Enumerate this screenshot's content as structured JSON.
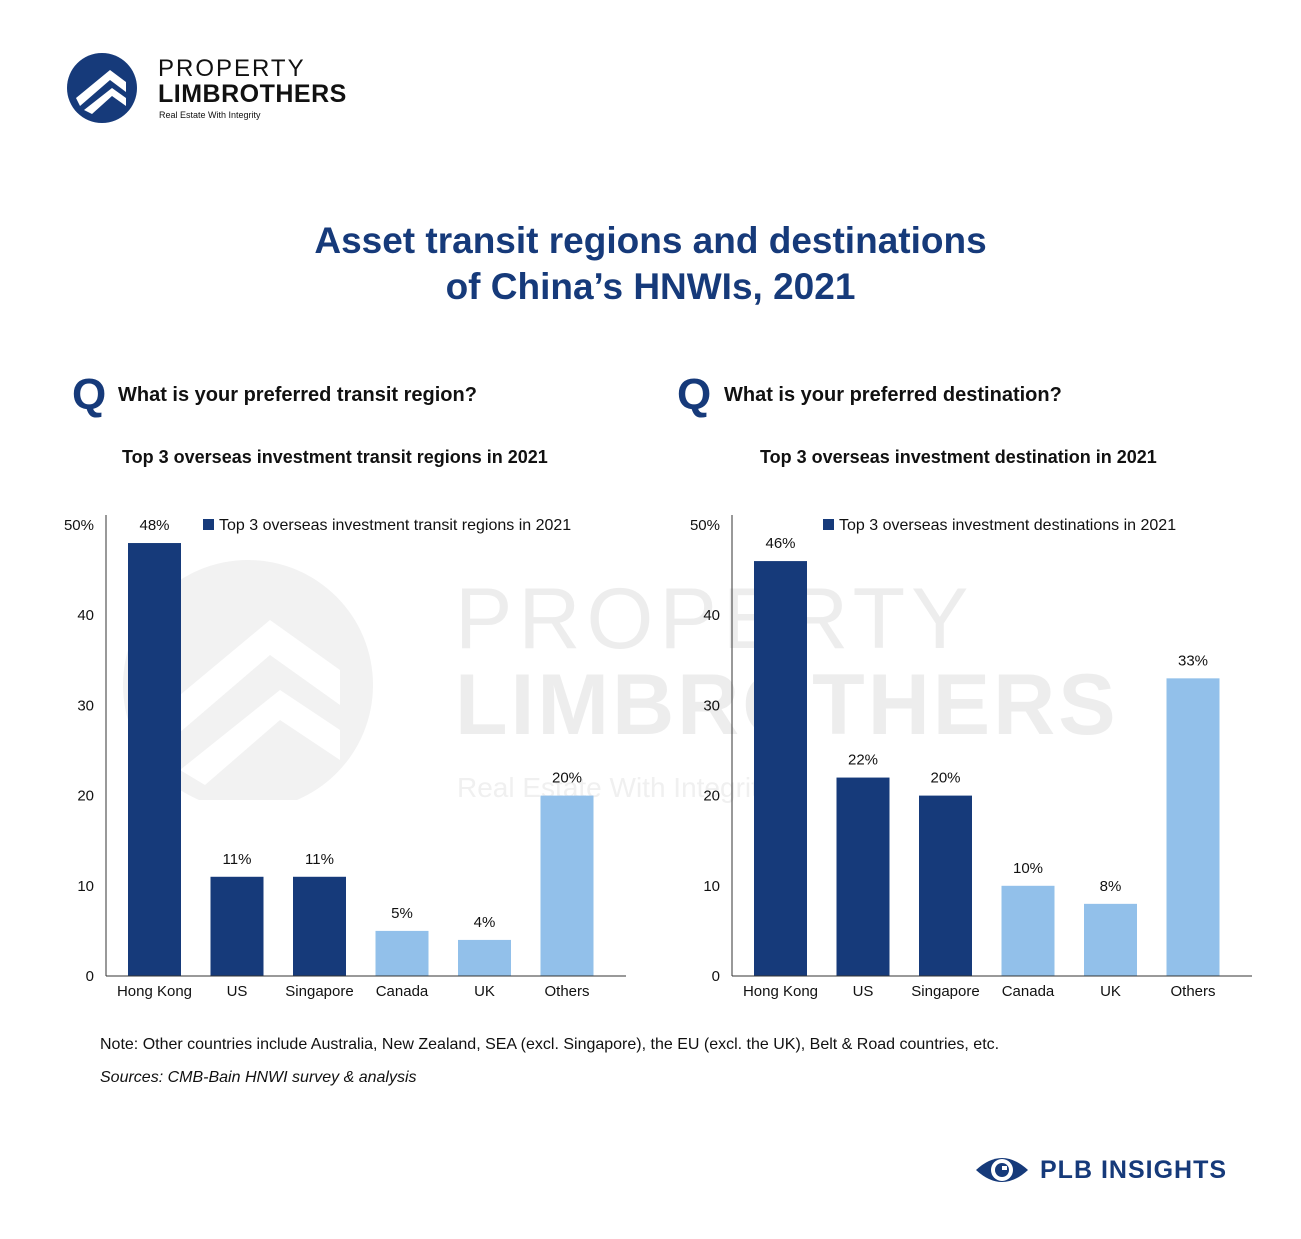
{
  "brand": {
    "line1": "PROPERTY",
    "line2": "LIMBROTHERS",
    "tagline": "Real Estate With Integrity"
  },
  "title": {
    "line1": "Asset transit regions and destinations",
    "line2": "of China’s HNWIs, 2021"
  },
  "left_panel": {
    "q_mark": "Q",
    "question": "What is your preferred transit region?",
    "subtitle": "Top 3 overseas investment transit regions in 2021"
  },
  "right_panel": {
    "q_mark": "Q",
    "question": "What is your preferred destination?",
    "subtitle": "Top 3 overseas investment destination in 2021"
  },
  "colors": {
    "dark": "#163a7a",
    "light": "#92c0ea",
    "title": "#163a7a"
  },
  "chart_data": [
    {
      "type": "bar",
      "title": "Top 3 overseas investment transit regions in 2021",
      "categories": [
        "Hong Kong",
        "US",
        "Singapore",
        "Canada",
        "UK",
        "Others"
      ],
      "values": [
        48,
        11,
        11,
        5,
        4,
        20
      ],
      "data_labels": [
        "48%",
        "11%",
        "11%",
        "5%",
        "4%",
        "20%"
      ],
      "bar_colors": [
        "#163a7a",
        "#163a7a",
        "#163a7a",
        "#92c0ea",
        "#92c0ea",
        "#92c0ea"
      ],
      "yticks": [
        "0",
        "10",
        "20",
        "30",
        "40",
        "50%"
      ],
      "ylim": [
        0,
        50
      ],
      "legend": "Top 3 overseas investment transit regions in 2021",
      "legend_placement": "top-right",
      "grid": false
    },
    {
      "type": "bar",
      "title": "Top 3 overseas investment destination in 2021",
      "categories": [
        "Hong Kong",
        "US",
        "Singapore",
        "Canada",
        "UK",
        "Others"
      ],
      "values": [
        46,
        22,
        20,
        10,
        8,
        33
      ],
      "data_labels": [
        "46%",
        "22%",
        "20%",
        "10%",
        "8%",
        "33%"
      ],
      "bar_colors": [
        "#163a7a",
        "#163a7a",
        "#163a7a",
        "#92c0ea",
        "#92c0ea",
        "#92c0ea"
      ],
      "yticks": [
        "0",
        "10",
        "20",
        "30",
        "40",
        "50%"
      ],
      "ylim": [
        0,
        50
      ],
      "legend": "Top 3 overseas investment destinations in 2021",
      "legend_placement": "top-right",
      "grid": false
    }
  ],
  "note": "Note: Other countries include Australia, New Zealand, SEA (excl. Singapore), the EU (excl. the UK), Belt & Road countries, etc.",
  "sources": "Sources: CMB-Bain HNWI survey & analysis",
  "footer_brand": "PLB INSIGHTS"
}
